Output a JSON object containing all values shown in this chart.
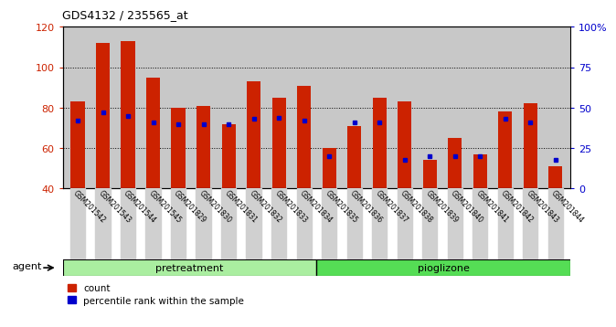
{
  "title": "GDS4132 / 235565_at",
  "samples": [
    "GSM201542",
    "GSM201543",
    "GSM201544",
    "GSM201545",
    "GSM201829",
    "GSM201830",
    "GSM201831",
    "GSM201832",
    "GSM201833",
    "GSM201834",
    "GSM201835",
    "GSM201836",
    "GSM201837",
    "GSM201838",
    "GSM201839",
    "GSM201840",
    "GSM201841",
    "GSM201842",
    "GSM201843",
    "GSM201844"
  ],
  "counts": [
    83,
    112,
    113,
    95,
    80,
    81,
    72,
    93,
    85,
    91,
    60,
    71,
    85,
    83,
    54,
    65,
    57,
    78,
    82,
    51
  ],
  "percentiles_pct": [
    42,
    47,
    45,
    41,
    40,
    40,
    40,
    43,
    44,
    42,
    20,
    41,
    41,
    18,
    20,
    20,
    20,
    43,
    41,
    18
  ],
  "ylim_left": [
    40,
    120
  ],
  "ylim_right": [
    0,
    100
  ],
  "bar_color": "#cc2200",
  "dot_color": "#0000cc",
  "plot_bg_color": "#c8c8c8",
  "pretreatment_color": "#aaeea0",
  "pioglizone_color": "#55dd55",
  "pretreatment_label": "pretreatment",
  "pioglizone_label": "pioglizone",
  "n_pretreatment": 10,
  "agent_label": "agent",
  "legend_count": "count",
  "legend_pct": "percentile rank within the sample",
  "right_yticks": [
    0,
    25,
    50,
    75,
    100
  ],
  "right_yticklabels": [
    "0",
    "25",
    "50",
    "75",
    "100%"
  ]
}
